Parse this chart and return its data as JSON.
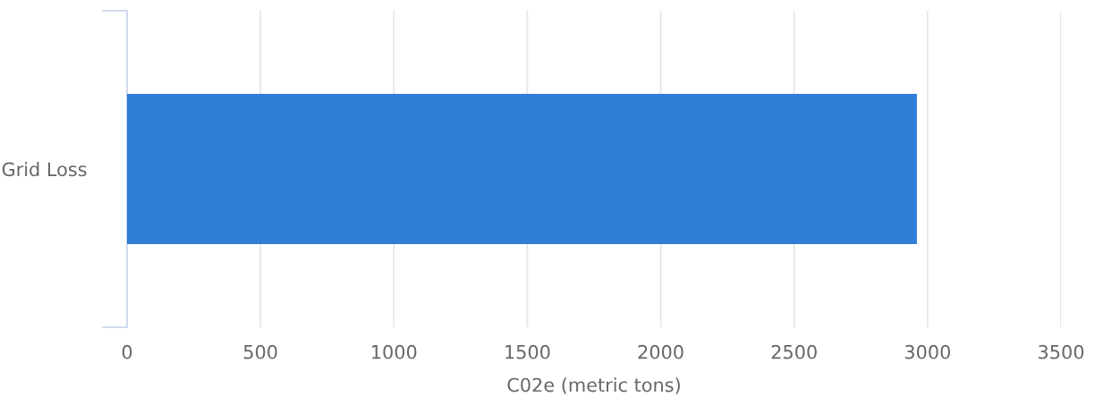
{
  "chart_data": {
    "type": "bar",
    "orientation": "horizontal",
    "categories": [
      "Grid Loss"
    ],
    "values": [
      2960
    ],
    "color": "#2f7ed8",
    "xlabel": "C02e (metric tons)",
    "xlim": [
      0,
      3500
    ],
    "xticks": [
      0,
      500,
      1000,
      1500,
      2000,
      2500,
      3000,
      3500
    ],
    "grid": "x",
    "legend": false
  }
}
